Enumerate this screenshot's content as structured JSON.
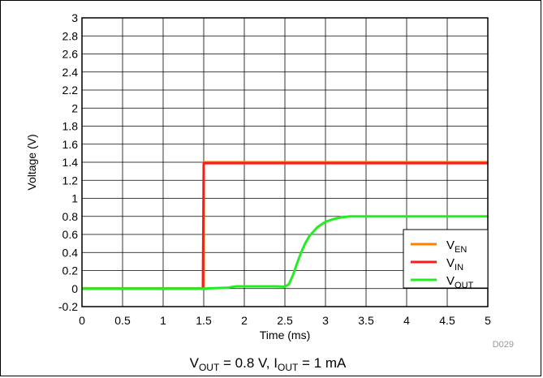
{
  "chart_data": {
    "type": "line",
    "xlabel": "Time (ms)",
    "ylabel": "Voltage (V)",
    "xlim": [
      0,
      5
    ],
    "ylim": [
      -0.2,
      3
    ],
    "x_ticks": [
      "0",
      "0.5",
      "1",
      "1.5",
      "2",
      "2.5",
      "3",
      "3.5",
      "4",
      "4.5",
      "5"
    ],
    "y_ticks": [
      "-0.2",
      "0",
      "0.2",
      "0.4",
      "0.6",
      "0.8",
      "1",
      "1.2",
      "1.4",
      "1.6",
      "1.8",
      "2",
      "2.2",
      "2.4",
      "2.6",
      "2.8",
      "3"
    ],
    "grid": true,
    "legend_position": "bottom-right",
    "series": [
      {
        "name": "V_EN",
        "legend": {
          "main": "V",
          "sub": "EN"
        },
        "color": "#ff7f00",
        "x": [
          0,
          1.5,
          1.5,
          5
        ],
        "y": [
          0,
          0,
          1.4,
          1.4
        ]
      },
      {
        "name": "V_IN",
        "legend": {
          "main": "V",
          "sub": "IN"
        },
        "color": "#ff1a1a",
        "x": [
          0,
          1.49,
          1.5,
          5
        ],
        "y": [
          0,
          0,
          1.39,
          1.39
        ]
      },
      {
        "name": "V_OUT",
        "legend": {
          "main": "V",
          "sub": "OUT"
        },
        "color": "#22ee22",
        "x": [
          0,
          1.5,
          1.8,
          1.9,
          2.4,
          2.5,
          2.55,
          2.6,
          2.65,
          2.7,
          2.75,
          2.8,
          2.9,
          3.0,
          3.1,
          3.2,
          3.3,
          3.5,
          4.0,
          5.0
        ],
        "y": [
          0,
          0,
          0.01,
          0.025,
          0.025,
          0.02,
          0.05,
          0.15,
          0.28,
          0.4,
          0.5,
          0.58,
          0.68,
          0.74,
          0.77,
          0.79,
          0.8,
          0.8,
          0.8,
          0.8
        ]
      }
    ],
    "caption": {
      "v_main": "V",
      "v_sub": "OUT",
      "v_val": " = 0.8 V, ",
      "i_main": "I",
      "i_sub": "OUT",
      "i_val": " = 1 mA"
    },
    "code": "D029"
  }
}
